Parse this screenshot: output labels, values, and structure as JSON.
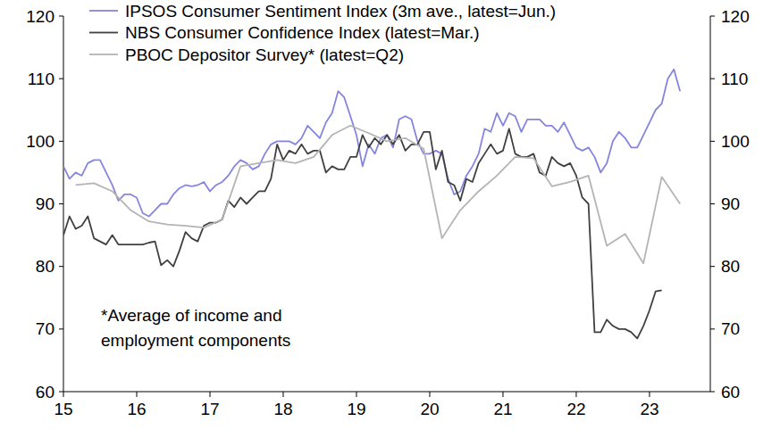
{
  "chart_data": {
    "type": "line",
    "legend": "top-left",
    "grid": false,
    "xlim": [
      2015,
      2023.83
    ],
    "xticks": [
      {
        "value": 2015,
        "label": "15"
      },
      {
        "value": 2016,
        "label": "16"
      },
      {
        "value": 2017,
        "label": "17"
      },
      {
        "value": 2018,
        "label": "18"
      },
      {
        "value": 2019,
        "label": "19"
      },
      {
        "value": 2020,
        "label": "20"
      },
      {
        "value": 2021,
        "label": "21"
      },
      {
        "value": 2022,
        "label": "22"
      },
      {
        "value": 2023,
        "label": "23"
      }
    ],
    "ylim": [
      60,
      120
    ],
    "yticks": [
      60,
      70,
      80,
      90,
      100,
      110,
      120
    ],
    "y2lim": [
      60,
      120
    ],
    "y2ticks": [
      60,
      70,
      80,
      90,
      100,
      110,
      120
    ],
    "annotation": [
      "*Average of income and",
      "employment components"
    ],
    "series": [
      {
        "name": "IPSOS Consumer Sentiment Index (3m ave., latest=Jun.)",
        "color": "#8585e0",
        "x": [
          2015,
          2015.083,
          2015.167,
          2015.25,
          2015.333,
          2015.417,
          2015.5,
          2015.583,
          2015.667,
          2015.75,
          2015.833,
          2015.917,
          2016,
          2016.083,
          2016.167,
          2016.25,
          2016.333,
          2016.417,
          2016.5,
          2016.583,
          2016.667,
          2016.75,
          2016.833,
          2016.917,
          2017,
          2017.083,
          2017.167,
          2017.25,
          2017.333,
          2017.417,
          2017.5,
          2017.583,
          2017.667,
          2017.75,
          2017.833,
          2017.917,
          2018,
          2018.083,
          2018.167,
          2018.25,
          2018.333,
          2018.417,
          2018.5,
          2018.583,
          2018.667,
          2018.75,
          2018.833,
          2018.917,
          2019,
          2019.083,
          2019.167,
          2019.25,
          2019.333,
          2019.417,
          2019.5,
          2019.583,
          2019.667,
          2019.75,
          2019.833,
          2019.917,
          2020,
          2020.083,
          2020.167,
          2020.25,
          2020.333,
          2020.417,
          2020.5,
          2020.583,
          2020.667,
          2020.75,
          2020.833,
          2020.917,
          2021,
          2021.083,
          2021.167,
          2021.25,
          2021.333,
          2021.417,
          2021.5,
          2021.583,
          2021.667,
          2021.75,
          2021.833,
          2021.917,
          2022,
          2022.083,
          2022.167,
          2022.25,
          2022.333,
          2022.417,
          2022.5,
          2022.583,
          2022.667,
          2022.75,
          2022.833,
          2022.917,
          2023,
          2023.083,
          2023.167,
          2023.25,
          2023.333,
          2023.417
        ],
        "values": [
          96,
          94,
          95,
          94.5,
          96.5,
          97,
          97,
          95,
          93,
          90.5,
          91.5,
          91.5,
          91,
          88.5,
          88,
          89,
          90,
          90,
          91.5,
          92.5,
          93,
          92.8,
          93,
          93.5,
          92,
          93,
          93.5,
          94.5,
          96,
          97,
          96.5,
          95.5,
          96,
          98,
          99.5,
          100,
          100,
          100,
          99.5,
          100.5,
          102.5,
          101.5,
          100.5,
          103,
          104.5,
          108,
          107,
          104,
          101,
          96,
          99.5,
          98,
          100.5,
          101,
          99,
          103.5,
          104,
          103.5,
          100,
          98,
          98,
          98.5,
          98,
          94,
          91.5,
          92,
          94.5,
          96,
          98,
          102,
          101.5,
          104.5,
          102.5,
          104.5,
          104,
          101.5,
          103.5,
          103.5,
          103.5,
          102.5,
          102.5,
          101.5,
          103,
          101,
          99,
          98.5,
          99,
          97.5,
          95,
          96.5,
          100,
          101.5,
          100.5,
          99,
          99,
          101,
          103,
          105,
          106,
          110,
          111.5,
          108
        ]
      },
      {
        "name": "NBS Consumer Confidence Index (latest=Mar.)",
        "color": "#404040",
        "x": [
          2015,
          2015.083,
          2015.167,
          2015.25,
          2015.333,
          2015.417,
          2015.5,
          2015.583,
          2015.667,
          2015.75,
          2015.833,
          2015.917,
          2016,
          2016.083,
          2016.167,
          2016.25,
          2016.333,
          2016.417,
          2016.5,
          2016.583,
          2016.667,
          2016.75,
          2016.833,
          2016.917,
          2017,
          2017.083,
          2017.167,
          2017.25,
          2017.333,
          2017.417,
          2017.5,
          2017.583,
          2017.667,
          2017.75,
          2017.833,
          2017.917,
          2018,
          2018.083,
          2018.167,
          2018.25,
          2018.333,
          2018.417,
          2018.5,
          2018.583,
          2018.667,
          2018.75,
          2018.833,
          2018.917,
          2019,
          2019.083,
          2019.167,
          2019.25,
          2019.333,
          2019.417,
          2019.5,
          2019.583,
          2019.667,
          2019.75,
          2019.833,
          2019.917,
          2020,
          2020.083,
          2020.167,
          2020.25,
          2020.333,
          2020.417,
          2020.5,
          2020.583,
          2020.667,
          2020.75,
          2020.833,
          2020.917,
          2021,
          2021.083,
          2021.167,
          2021.25,
          2021.333,
          2021.417,
          2021.5,
          2021.583,
          2021.667,
          2021.75,
          2021.833,
          2021.917,
          2022,
          2022.083,
          2022.167,
          2022.25,
          2022.333,
          2022.417,
          2022.5,
          2022.583,
          2022.667,
          2022.75,
          2022.833,
          2022.917,
          2023,
          2023.083,
          2023.167
        ],
        "values": [
          85,
          88,
          86,
          86.5,
          88,
          84.5,
          84,
          83.5,
          85,
          83.5,
          83.5,
          83.5,
          83.5,
          83.5,
          83.8,
          84,
          80.2,
          81,
          80,
          82.5,
          85.5,
          84.5,
          84,
          86.5,
          87,
          87,
          87.5,
          90.5,
          89.5,
          91,
          90,
          91,
          92,
          92,
          94,
          99.5,
          97,
          98.5,
          98,
          99.5,
          98,
          98.5,
          98.5,
          95,
          96,
          95.5,
          95.5,
          97.5,
          97.5,
          101,
          99,
          100.5,
          99.5,
          101,
          99.5,
          101,
          98.5,
          99.5,
          99.5,
          101.5,
          101.5,
          95.5,
          98.5,
          93.5,
          93,
          90.5,
          94,
          93.5,
          96.5,
          98,
          99.5,
          98,
          98.5,
          102,
          98,
          97.5,
          97.5,
          98,
          95,
          94.5,
          97.5,
          96.5,
          96,
          96.5,
          94.5,
          91,
          90,
          69.5,
          69.5,
          71.5,
          70.5,
          70,
          70,
          69.5,
          68.5,
          70.5,
          73,
          76,
          76.2
        ]
      },
      {
        "name": "PBOC Depositor Survey* (latest=Q2)",
        "color": "#b4b4b4",
        "x": [
          2015.167,
          2015.417,
          2015.667,
          2015.917,
          2016.167,
          2016.417,
          2016.667,
          2016.917,
          2017.167,
          2017.417,
          2017.667,
          2017.917,
          2018.167,
          2018.417,
          2018.667,
          2018.917,
          2019.167,
          2019.417,
          2019.667,
          2019.917,
          2020.167,
          2020.417,
          2020.667,
          2020.917,
          2021.167,
          2021.417,
          2021.667,
          2021.917,
          2022.167,
          2022.417,
          2022.667,
          2022.917,
          2023.167,
          2023.417
        ],
        "values": [
          93,
          93.3,
          92,
          89,
          87.2,
          86.7,
          86.5,
          86.2,
          87.5,
          96,
          96.5,
          97,
          96.5,
          97.5,
          101,
          102.5,
          101.3,
          100,
          100.5,
          98.8,
          84.5,
          89,
          92,
          94.5,
          97.5,
          97.3,
          92.8,
          93.5,
          94.5,
          83.3,
          85.2,
          80.5,
          94.3,
          90
        ]
      }
    ]
  }
}
